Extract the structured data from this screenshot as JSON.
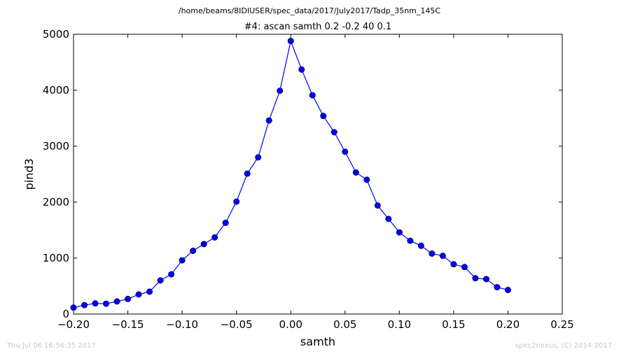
{
  "figure": {
    "suptitle": "/home/beams/8IDIUSER/spec_data/2017/July2017/Tadp_35nm_145C",
    "footer_left": "Thu Jul 06 16:56:35 2017",
    "footer_right": "spec2nexus, (C) 2014-2017"
  },
  "chart_data": {
    "type": "line",
    "title": "#4: ascan  samth 0.2 -0.2  40 0.1",
    "xlabel": "samth",
    "ylabel": "pind3",
    "xlim": [
      -0.2,
      0.25
    ],
    "ylim": [
      0,
      5000
    ],
    "xticks": [
      "−0.20",
      "−0.15",
      "−0.10",
      "−0.05",
      "0.00",
      "0.05",
      "0.10",
      "0.15",
      "0.20",
      "0.25"
    ],
    "xtick_values": [
      -0.2,
      -0.15,
      -0.1,
      -0.05,
      0.0,
      0.05,
      0.1,
      0.15,
      0.2,
      0.25
    ],
    "yticks": [
      "0",
      "1000",
      "2000",
      "3000",
      "4000",
      "5000"
    ],
    "ytick_values": [
      0,
      1000,
      2000,
      3000,
      4000,
      5000
    ],
    "grid": false,
    "color": "#0000ff",
    "series": [
      {
        "x": [
          -0.2,
          -0.19,
          -0.18,
          -0.17,
          -0.16,
          -0.15,
          -0.14,
          -0.13,
          -0.12,
          -0.11,
          -0.1,
          -0.09,
          -0.08,
          -0.07,
          -0.06,
          -0.05,
          -0.04,
          -0.03,
          -0.02,
          -0.01,
          0.0,
          0.01,
          0.02,
          0.03,
          0.04,
          0.05,
          0.06,
          0.07,
          0.08,
          0.09,
          0.1,
          0.11,
          0.12,
          0.13,
          0.14,
          0.15,
          0.16,
          0.17,
          0.18,
          0.19,
          0.2
        ],
        "y": [
          115,
          160,
          190,
          185,
          225,
          270,
          350,
          400,
          600,
          710,
          960,
          1130,
          1250,
          1370,
          1630,
          2010,
          2510,
          2800,
          3460,
          3990,
          4880,
          4370,
          3910,
          3540,
          3250,
          2900,
          2530,
          2400,
          1940,
          1700,
          1460,
          1310,
          1220,
          1080,
          1040,
          890,
          840,
          640,
          625,
          480,
          430
        ]
      }
    ]
  }
}
